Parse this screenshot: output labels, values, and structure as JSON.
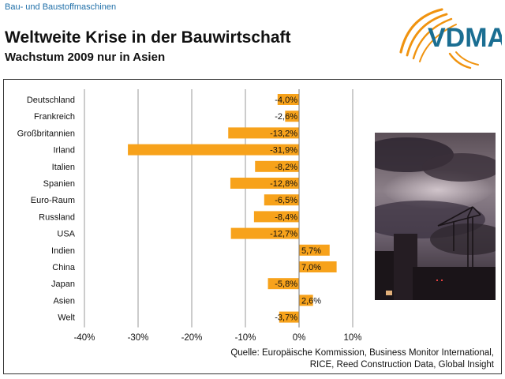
{
  "header": {
    "category": "Bau- und Baustoffmaschinen",
    "title": "Weltweite Krise in der Bauwirtschaft",
    "subtitle": "Wachstum 2009 nur in Asien"
  },
  "logo": {
    "text": "VDMA",
    "icon": "vdma-logo-arcs",
    "colors": {
      "arcs": "#f0930f",
      "text": "#1a6e92"
    }
  },
  "photo": {
    "icon": "construction-crane-sky-photo"
  },
  "source": {
    "line1": "Quelle: Europäische Kommission, Business Monitor International,",
    "line2": "RICE, Reed Construction Data, Global Insight"
  },
  "chart_data": {
    "type": "bar",
    "orientation": "horizontal",
    "categories": [
      "Deutschland",
      "Frankreich",
      "Großbritannien",
      "Irland",
      "Italien",
      "Spanien",
      "Euro-Raum",
      "Russland",
      "USA",
      "Indien",
      "China",
      "Japan",
      "Asien",
      "Welt"
    ],
    "values": [
      -4.0,
      -2.6,
      -13.2,
      -31.9,
      -8.2,
      -12.8,
      -6.5,
      -8.4,
      -12.7,
      5.7,
      7.0,
      -5.8,
      2.6,
      -3.7
    ],
    "value_labels": [
      "-4,0%",
      "-2,6%",
      "-13,2%",
      "-31,9%",
      "-8,2%",
      "-12,8%",
      "-6,5%",
      "-8,4%",
      "-12,7%",
      "5,7%",
      "7,0%",
      "-5,8%",
      "2,6%",
      "-3,7%"
    ],
    "x_ticks": [
      -40,
      -30,
      -20,
      -10,
      0,
      10
    ],
    "x_tick_labels": [
      "-40%",
      "-30%",
      "-20%",
      "-10%",
      "0%",
      "10%"
    ],
    "xlim": [
      -40,
      10
    ],
    "grid": true,
    "bar_color": "#f7a21b"
  }
}
